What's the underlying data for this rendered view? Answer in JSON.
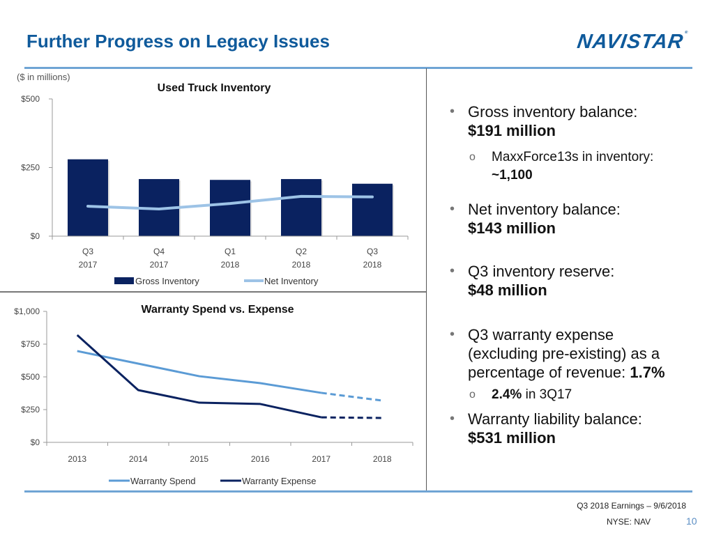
{
  "page": {
    "title": "Further Progress on Legacy Issues",
    "logo_text": "NAVISTAR",
    "units_note": "($ in millions)",
    "footer": {
      "event": "Q3 2018 Earnings – 9/6/2018",
      "ticker": "NYSE: NAV",
      "page_number": "10"
    }
  },
  "colors": {
    "title_blue": "#0f5a9b",
    "navy": "#0a2260",
    "light_blue": "#9dc3e6",
    "spend_blue": "#5b9bd5",
    "rule_blue": "#6fa4d4"
  },
  "bullets_inventory": [
    {
      "text": "Gross inventory balance:",
      "value": "$191 million"
    },
    {
      "sub": true,
      "text": "MaxxForce13s in inventory:",
      "value": "~1,100"
    },
    {
      "text": "Net inventory balance:",
      "value": "$143 million"
    },
    {
      "text": "Q3 inventory reserve:",
      "value": "$48 million"
    }
  ],
  "bullets_warranty": [
    {
      "text_lines": [
        "Q3 warranty expense",
        "(excluding pre-existing) as a",
        "percentage of revenue: "
      ],
      "value": "1.7%"
    },
    {
      "sub": true,
      "value": "2.4%",
      "text": " in 3Q17"
    },
    {
      "text": "Warranty liability balance:",
      "value": "$531 million"
    }
  ],
  "chart_data": [
    {
      "type": "bar",
      "title": "Used Truck Inventory",
      "categories": [
        [
          "Q3",
          "2017"
        ],
        [
          "Q4",
          "2017"
        ],
        [
          "Q1",
          "2018"
        ],
        [
          "Q2",
          "2018"
        ],
        [
          "Q3",
          "2018"
        ]
      ],
      "ylim": [
        0,
        500
      ],
      "yticks": [
        0,
        250,
        500
      ],
      "ytick_labels": [
        "$0",
        "$250",
        "$500"
      ],
      "grid": false,
      "legend_position": "bottom",
      "series": [
        {
          "name": "Gross Inventory",
          "kind": "bar",
          "color": "#0a2260",
          "values": [
            280,
            208,
            205,
            208,
            191
          ]
        },
        {
          "name": "Net Inventory",
          "kind": "line",
          "color": "#9dc3e6",
          "values": [
            109,
            99,
            119,
            145,
            143
          ]
        }
      ],
      "xlabel": "",
      "ylabel": ""
    },
    {
      "type": "line",
      "title": "Warranty Spend vs. Expense",
      "x": [
        "2013",
        "2014",
        "2015",
        "2016",
        "2017",
        "2018"
      ],
      "ylim": [
        0,
        1000
      ],
      "yticks": [
        0,
        250,
        500,
        750,
        1000
      ],
      "ytick_labels": [
        "$0",
        "$250",
        "$500",
        "$750",
        "$1,000"
      ],
      "grid": false,
      "legend_position": "bottom",
      "dashed_from_index": 4,
      "series": [
        {
          "name": "Warranty Spend",
          "color": "#5b9bd5",
          "values": [
            697,
            601,
            505,
            452,
            378,
            319
          ]
        },
        {
          "name": "Warranty Expense",
          "color": "#0a2260",
          "values": [
            819,
            399,
            303,
            293,
            191,
            186
          ]
        }
      ],
      "xlabel": "",
      "ylabel": ""
    }
  ]
}
